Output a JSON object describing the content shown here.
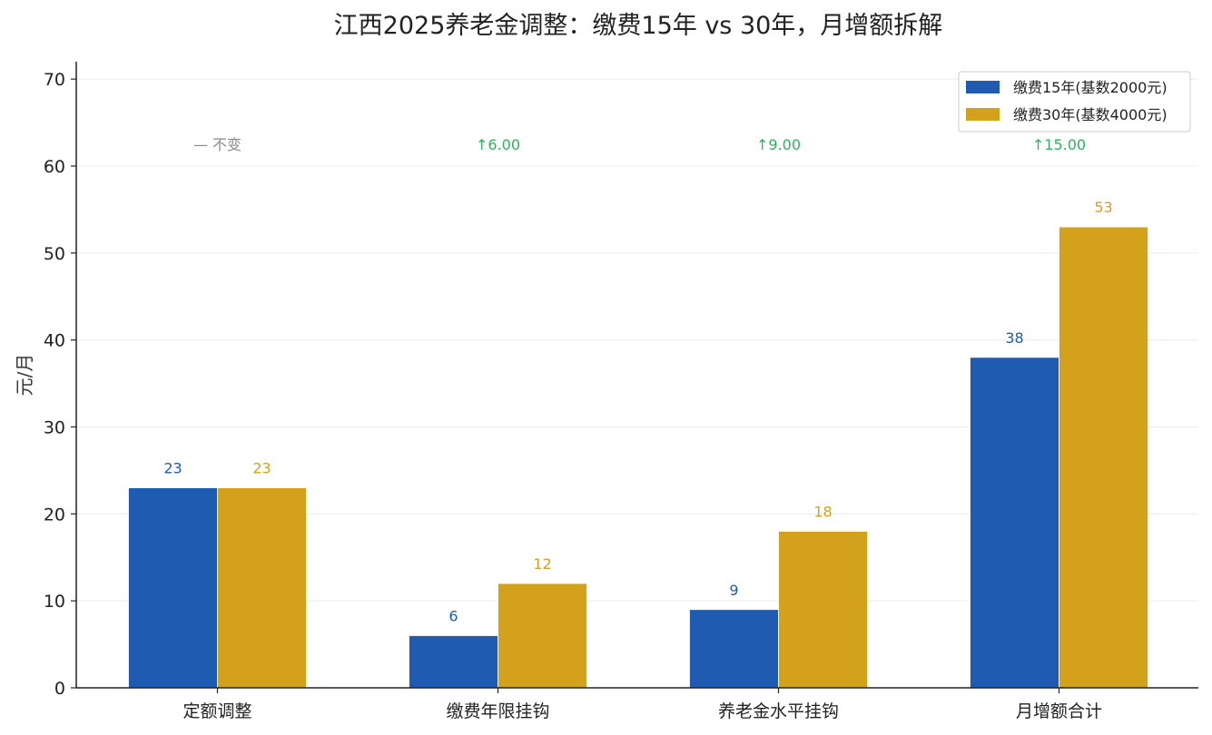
{
  "chart_data": {
    "type": "bar",
    "title": "江西2025养老金调整：缴费15年 vs 30年，月增额拆解",
    "ylabel": "元/月",
    "xlabel": "",
    "ylim": [
      0,
      72
    ],
    "yticks": [
      "0",
      "10",
      "20",
      "30",
      "40",
      "50",
      "60",
      "70"
    ],
    "grid": true,
    "legend_position": "top-right",
    "categories": [
      "定额调整",
      "缴费年限挂钩",
      "养老金水平挂钩",
      "月增额合计"
    ],
    "series": [
      {
        "name": "缴费15年(基数2000元)",
        "values": [
          23,
          6,
          9,
          38
        ],
        "labels": [
          "23",
          "6",
          "9",
          "38"
        ],
        "color": "#1f5bb0"
      },
      {
        "name": "缴费30年(基数4000元)",
        "values": [
          23,
          12,
          18,
          53
        ],
        "labels": [
          "23",
          "12",
          "18",
          "53"
        ],
        "color": "#d4a11c"
      }
    ],
    "annotations": [
      {
        "text": "— 不变",
        "color": "#8a8a8a"
      },
      {
        "text": "↑6.00",
        "color": "#2db35d"
      },
      {
        "text": "↑9.00",
        "color": "#2db35d"
      },
      {
        "text": "↑15.00",
        "color": "#2db35d"
      }
    ]
  }
}
